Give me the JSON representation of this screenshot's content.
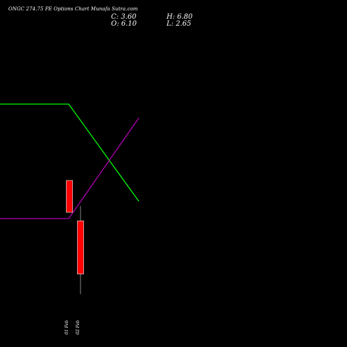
{
  "header": {
    "title": "ONGC 274.75 PE Options  Chart Munafa Sutra.com",
    "close_label": "C: 3.60",
    "open_label": "O: 6.10",
    "high_label": "H: 6.80",
    "low_label": "L: 2.65"
  },
  "colors": {
    "background": "#000000",
    "ma_short": "#00ff00",
    "ma_long": "#b000b0",
    "bear_candle": "#ff0000"
  },
  "chart_data": {
    "type": "candlestick",
    "title": "ONGC 274.75 PE Options  Chart Munafa Sutra.com",
    "candles": [
      {
        "label": "01 Feb",
        "open": 8.0,
        "high": 8.0,
        "low": 6.5,
        "close": 6.5
      },
      {
        "label": "02 Feb",
        "open": 6.1,
        "high": 6.8,
        "low": 2.65,
        "close": 3.6
      }
    ],
    "lines": [
      {
        "color": "#00ff00",
        "points": [
          [
            0,
            0.7
          ],
          [
            1,
            0.7
          ],
          [
            2,
            0.42
          ]
        ]
      },
      {
        "color": "#b000b0",
        "points": [
          [
            0,
            0.37
          ],
          [
            1,
            0.37
          ],
          [
            2,
            0.66
          ]
        ]
      }
    ],
    "x_ticks": [
      "01 Feb",
      "02 Feb"
    ]
  }
}
